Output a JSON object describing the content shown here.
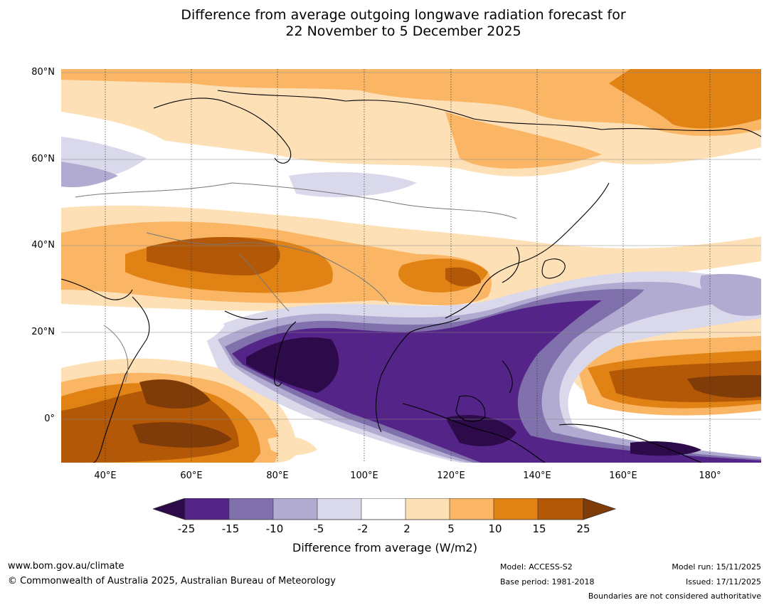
{
  "title": {
    "line1": "Difference from average outgoing longwave radiation forecast for",
    "line2": "22 November to 5 December 2025"
  },
  "map": {
    "lat_labels": [
      "80°N",
      "60°N",
      "40°N",
      "20°N",
      "0°"
    ],
    "lon_labels": [
      "40°E",
      "60°E",
      "80°E",
      "100°E",
      "120°E",
      "140°E",
      "160°E",
      "180°"
    ],
    "colors": {
      "lt_-25": "#2d0a4a",
      "-25_-15": "#542489",
      "-15_-10": "#8071ac",
      "-10_-5": "#b1aad1",
      "-5_-2": "#d9d9eb",
      "-2_2": "#ffffff",
      "2_5": "#fee0b6",
      "5_10": "#fab665",
      "10_15": "#e08214",
      "15_25": "#b35806",
      "gt_25": "#7f3b08"
    }
  },
  "colorbar": {
    "ticks": [
      "-25",
      "-15",
      "-10",
      "-5",
      "-2",
      "2",
      "5",
      "10",
      "15",
      "25"
    ],
    "title": "Difference from average (W/m2)"
  },
  "footer": {
    "website": "www.bom.gov.au/climate",
    "copyright": "© Commonwealth of Australia 2025, Australian Bureau of Meteorology",
    "model": "Model: ACCESS-S2",
    "base_period": "Base period: 1981-2018",
    "model_run": "Model run: 15/11/2025",
    "issued": "Issued: 17/11/2025",
    "disclaimer": "Boundaries are not considered authoritative"
  }
}
